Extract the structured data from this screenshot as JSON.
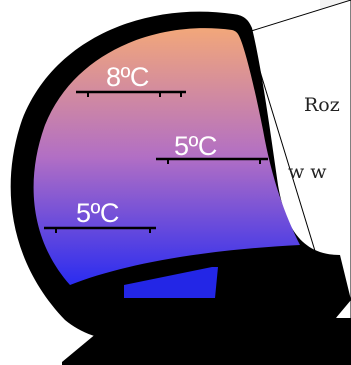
{
  "diagram": {
    "zones": [
      {
        "label": "8ºC"
      },
      {
        "label": "5ºC"
      },
      {
        "label": "5ºC"
      }
    ],
    "side_text": {
      "line1": "Roz",
      "line2": "w w"
    },
    "colors": {
      "gradient_top": "#f2a77a",
      "gradient_mid": "#b26fc4",
      "gradient_bottom": "#2a2cf0",
      "outline": "#000000",
      "drawer": "#2326e6",
      "label": "#ffffff",
      "shelf": "#000000"
    }
  }
}
